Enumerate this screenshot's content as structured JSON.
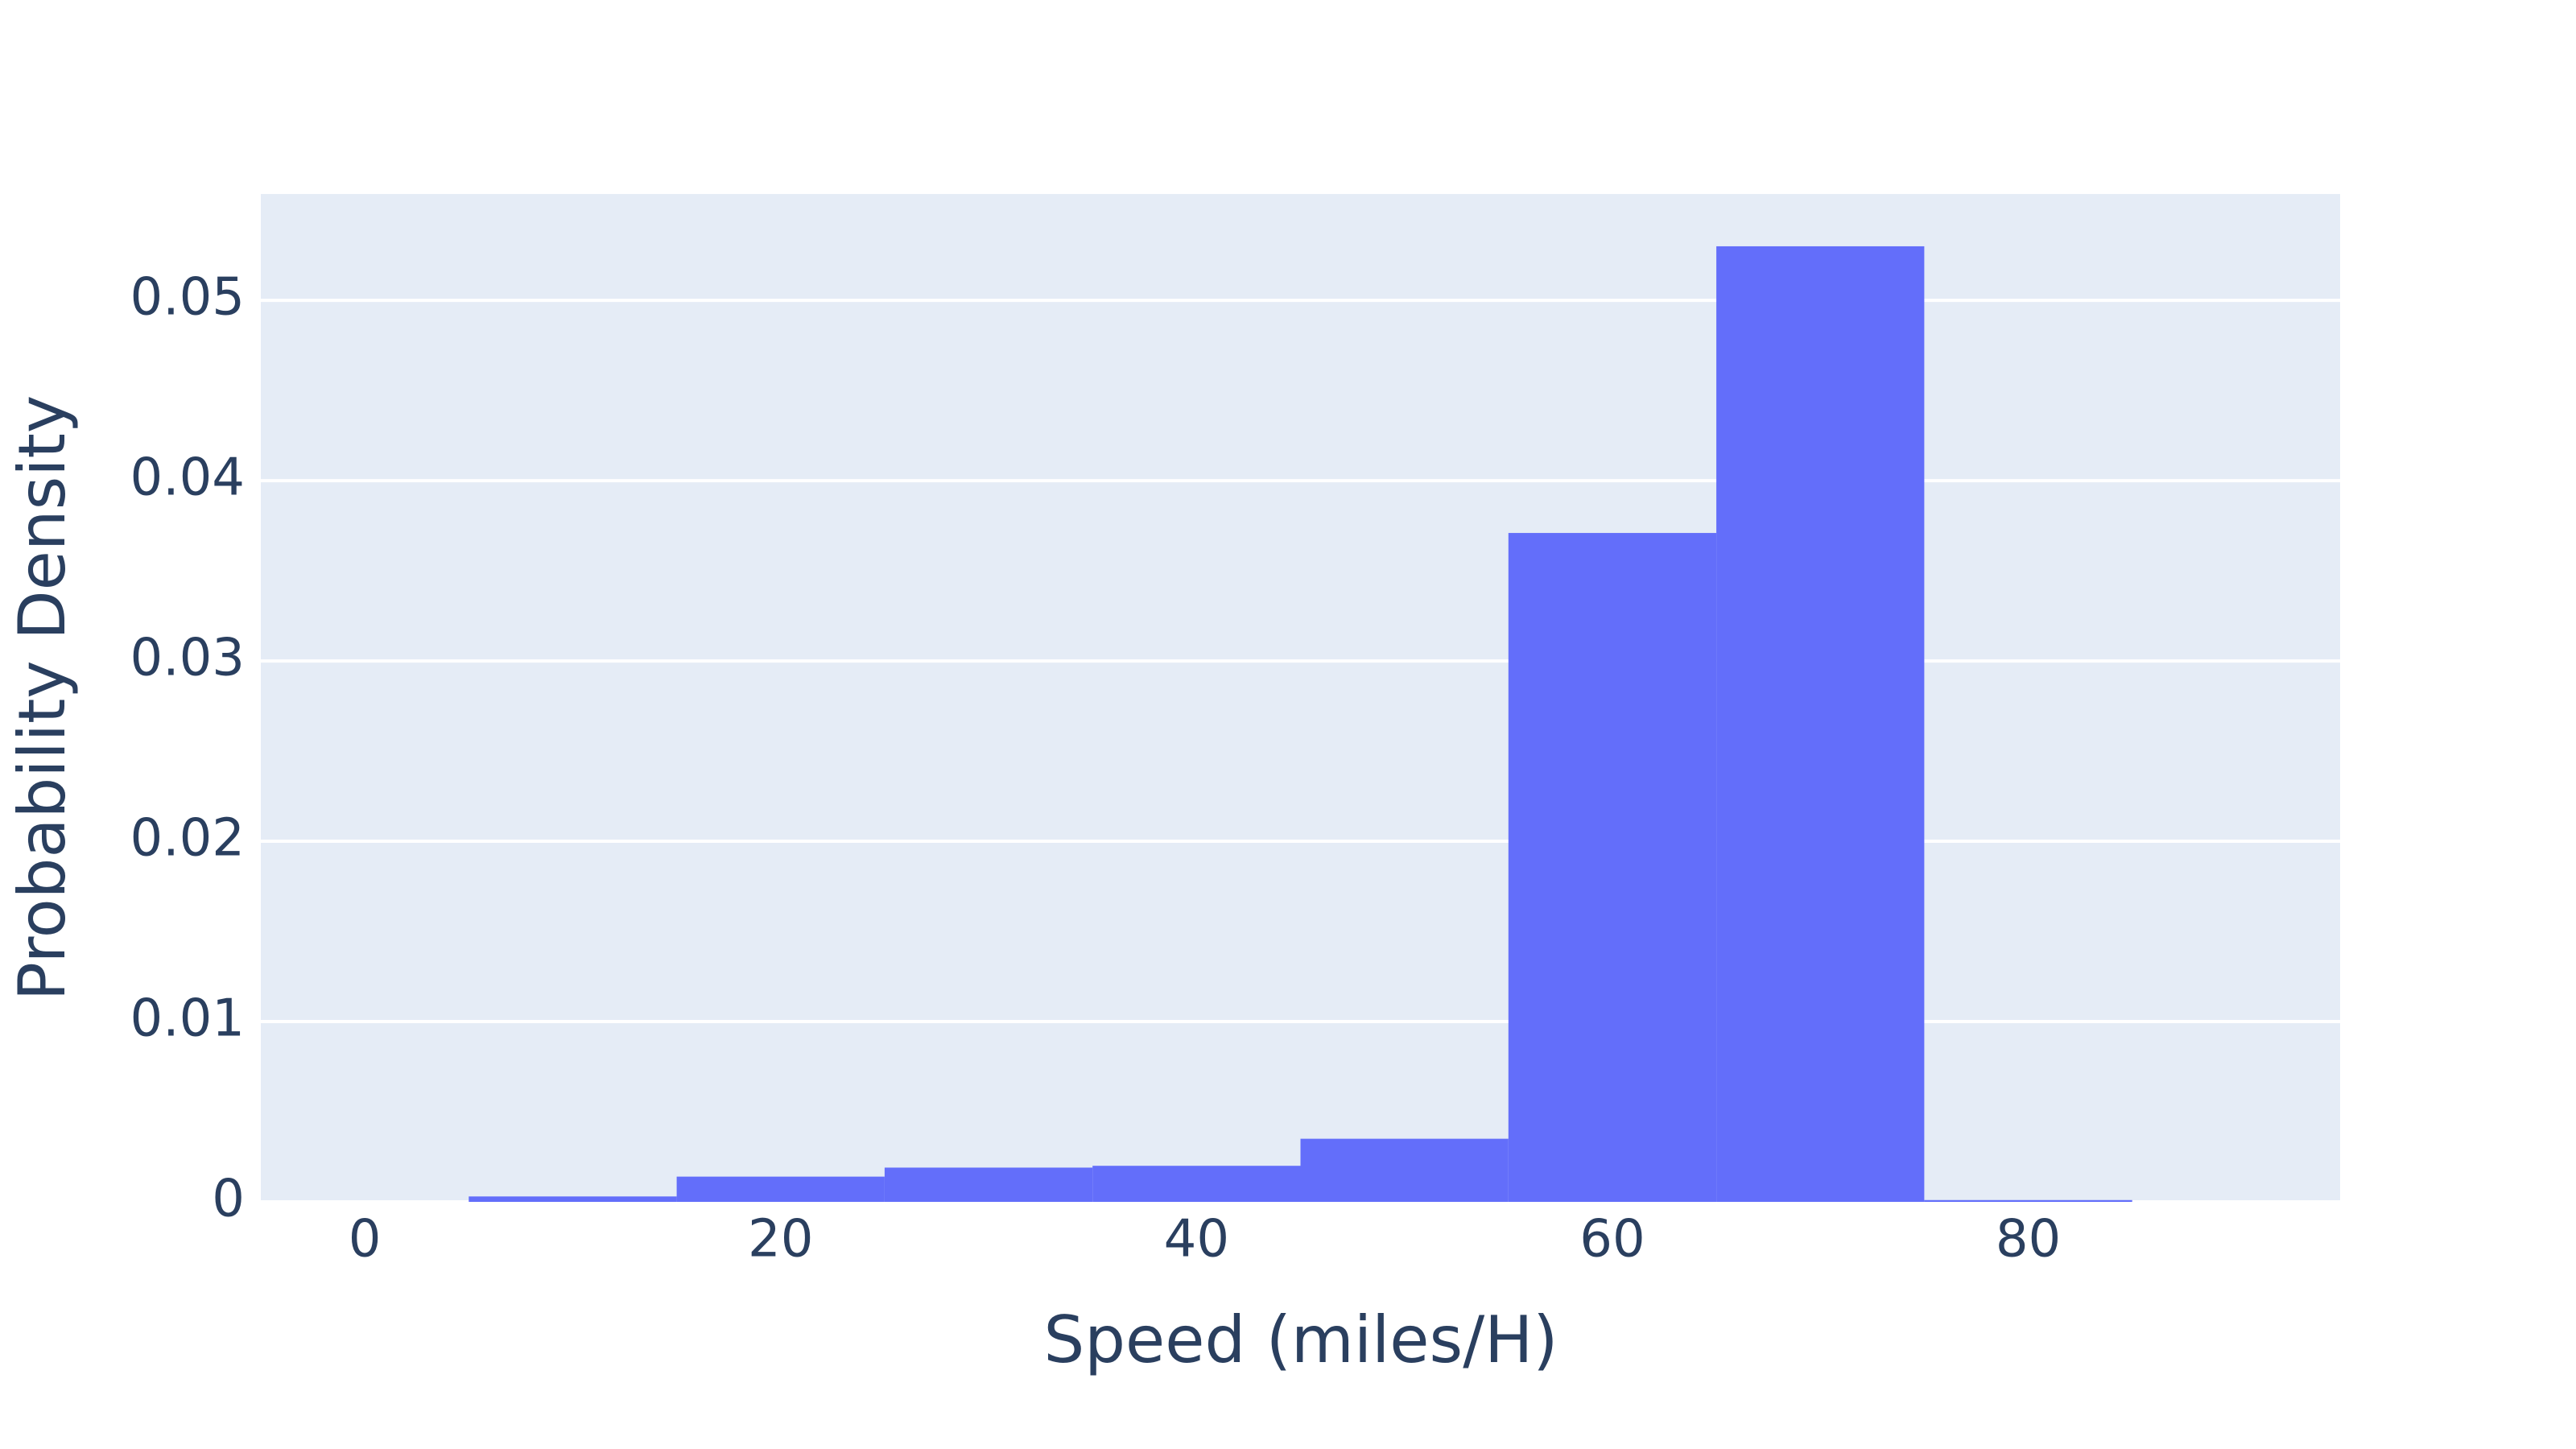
{
  "chart_data": {
    "type": "histogram",
    "xlabel": "Speed (miles/H)",
    "ylabel": "Probability Density",
    "bins": [
      5,
      15,
      25,
      35,
      45,
      55,
      65,
      75,
      85
    ],
    "values": [
      0.0003,
      0.0014,
      0.0019,
      0.002,
      0.0035,
      0.0371,
      0.053,
      0.0001
    ],
    "color": "#636efa",
    "xlim": [
      -5,
      95
    ],
    "xticks": [
      0,
      20,
      40,
      60,
      80
    ],
    "ylim": [
      0,
      0.0559
    ],
    "yticks": [
      0,
      0.01,
      0.02,
      0.03,
      0.04,
      0.05
    ],
    "grid": true
  }
}
